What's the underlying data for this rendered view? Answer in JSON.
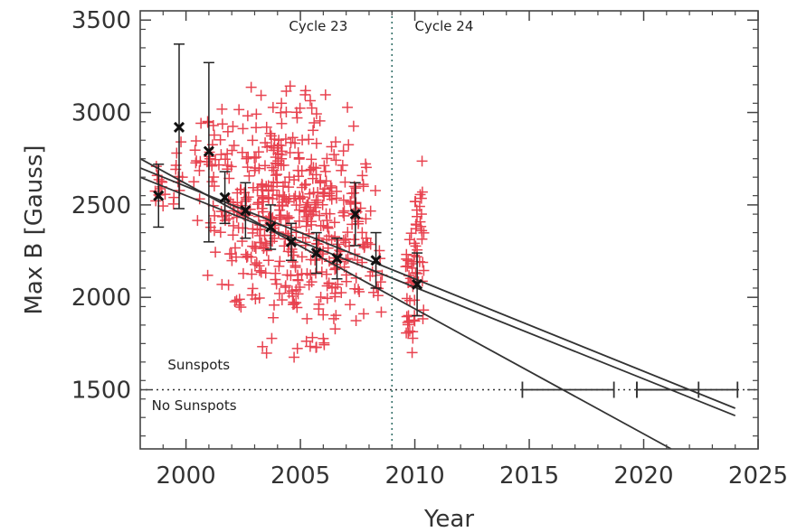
{
  "chart_data": {
    "type": "scatter",
    "xlabel": "Year",
    "ylabel": "Max B [Gauss]",
    "xlim": [
      1998.0,
      2025.0
    ],
    "ylim": [
      1180,
      3550
    ],
    "xticks": [
      2000,
      2005,
      2010,
      2015,
      2020,
      2025
    ],
    "xtick_labels": [
      "2000",
      "2005",
      "2010",
      "2015",
      "2020",
      "2025"
    ],
    "yticks": [
      1500,
      2000,
      2500,
      3000,
      3500
    ],
    "ytick_labels": [
      "1500",
      "2000",
      "2500",
      "3000",
      "3500"
    ],
    "grid": false,
    "legend": "none",
    "colors": {
      "measurements": "#e8424f",
      "annual_means": "#111111",
      "fit_lines": "#333333",
      "frame": "#444444"
    },
    "annotations": {
      "cycle_23": "Cycle 23",
      "cycle_24": "Cycle 24",
      "sunspots": "Sunspots",
      "no_sunspots": "No Sunspots"
    },
    "cycle_boundary_year": 2009.0,
    "threshold_gauss": 1500,
    "measurement_year_ranges": [
      [
        1998.6,
        1999.1,
        2350,
        2780,
        12
      ],
      [
        1999.3,
        1999.9,
        2250,
        3200,
        10
      ],
      [
        2000.3,
        2000.8,
        2200,
        3050,
        10
      ],
      [
        2000.9,
        2001.4,
        1950,
        3300,
        22
      ],
      [
        2001.4,
        2002.0,
        1850,
        3250,
        25
      ],
      [
        2002.0,
        2002.5,
        1700,
        3250,
        30
      ],
      [
        2002.5,
        2003.2,
        1650,
        3300,
        45
      ],
      [
        2003.2,
        2003.8,
        1550,
        3400,
        55
      ],
      [
        2003.8,
        2004.4,
        1600,
        3450,
        65
      ],
      [
        2004.4,
        2005.0,
        1550,
        3350,
        60
      ],
      [
        2005.0,
        2005.6,
        1500,
        3450,
        50
      ],
      [
        2005.6,
        2006.2,
        1480,
        3300,
        55
      ],
      [
        2006.2,
        2006.8,
        1550,
        3000,
        40
      ],
      [
        2006.8,
        2007.5,
        1650,
        3250,
        40
      ],
      [
        2007.5,
        2008.0,
        1750,
        2900,
        20
      ],
      [
        2008.0,
        2008.6,
        1600,
        2650,
        15
      ],
      [
        2009.6,
        2010.0,
        1500,
        2550,
        35
      ],
      [
        2010.0,
        2010.4,
        1550,
        2900,
        30
      ]
    ],
    "annual_means": [
      {
        "year": 1998.8,
        "value": 2550,
        "low": 2380,
        "high": 2720
      },
      {
        "year": 1999.7,
        "value": 2920,
        "low": 2480,
        "high": 3370
      },
      {
        "year": 2001.0,
        "value": 2790,
        "low": 2300,
        "high": 3270
      },
      {
        "year": 2001.7,
        "value": 2540,
        "low": 2400,
        "high": 2680
      },
      {
        "year": 2002.6,
        "value": 2470,
        "low": 2320,
        "high": 2620
      },
      {
        "year": 2003.7,
        "value": 2380,
        "low": 2260,
        "high": 2500
      },
      {
        "year": 2004.6,
        "value": 2300,
        "low": 2200,
        "high": 2400
      },
      {
        "year": 2005.7,
        "value": 2240,
        "low": 2130,
        "high": 2350
      },
      {
        "year": 2006.6,
        "value": 2210,
        "low": 2100,
        "high": 2320
      },
      {
        "year": 2007.4,
        "value": 2450,
        "low": 2280,
        "high": 2620
      },
      {
        "year": 2008.3,
        "value": 2200,
        "low": 2050,
        "high": 2350
      },
      {
        "year": 2010.1,
        "value": 2070,
        "low": 1900,
        "high": 2240
      }
    ],
    "fit_lines": [
      {
        "x": [
          1998.0,
          2024.0
        ],
        "y": [
          2650,
          1360
        ]
      },
      {
        "x": [
          1998.0,
          2024.0
        ],
        "y": [
          2700,
          1400
        ]
      },
      {
        "x": [
          1998.0,
          2021.2
        ],
        "y": [
          2750,
          1180
        ]
      }
    ],
    "threshold_crossing_years": [
      {
        "year": 2016.8,
        "low": 2014.7,
        "high": 2018.7
      },
      {
        "year": 2021.2,
        "low": 2019.7,
        "high": 2022.4
      },
      {
        "year": 2022.4,
        "low": 2019.7,
        "high": 2024.1
      }
    ]
  }
}
